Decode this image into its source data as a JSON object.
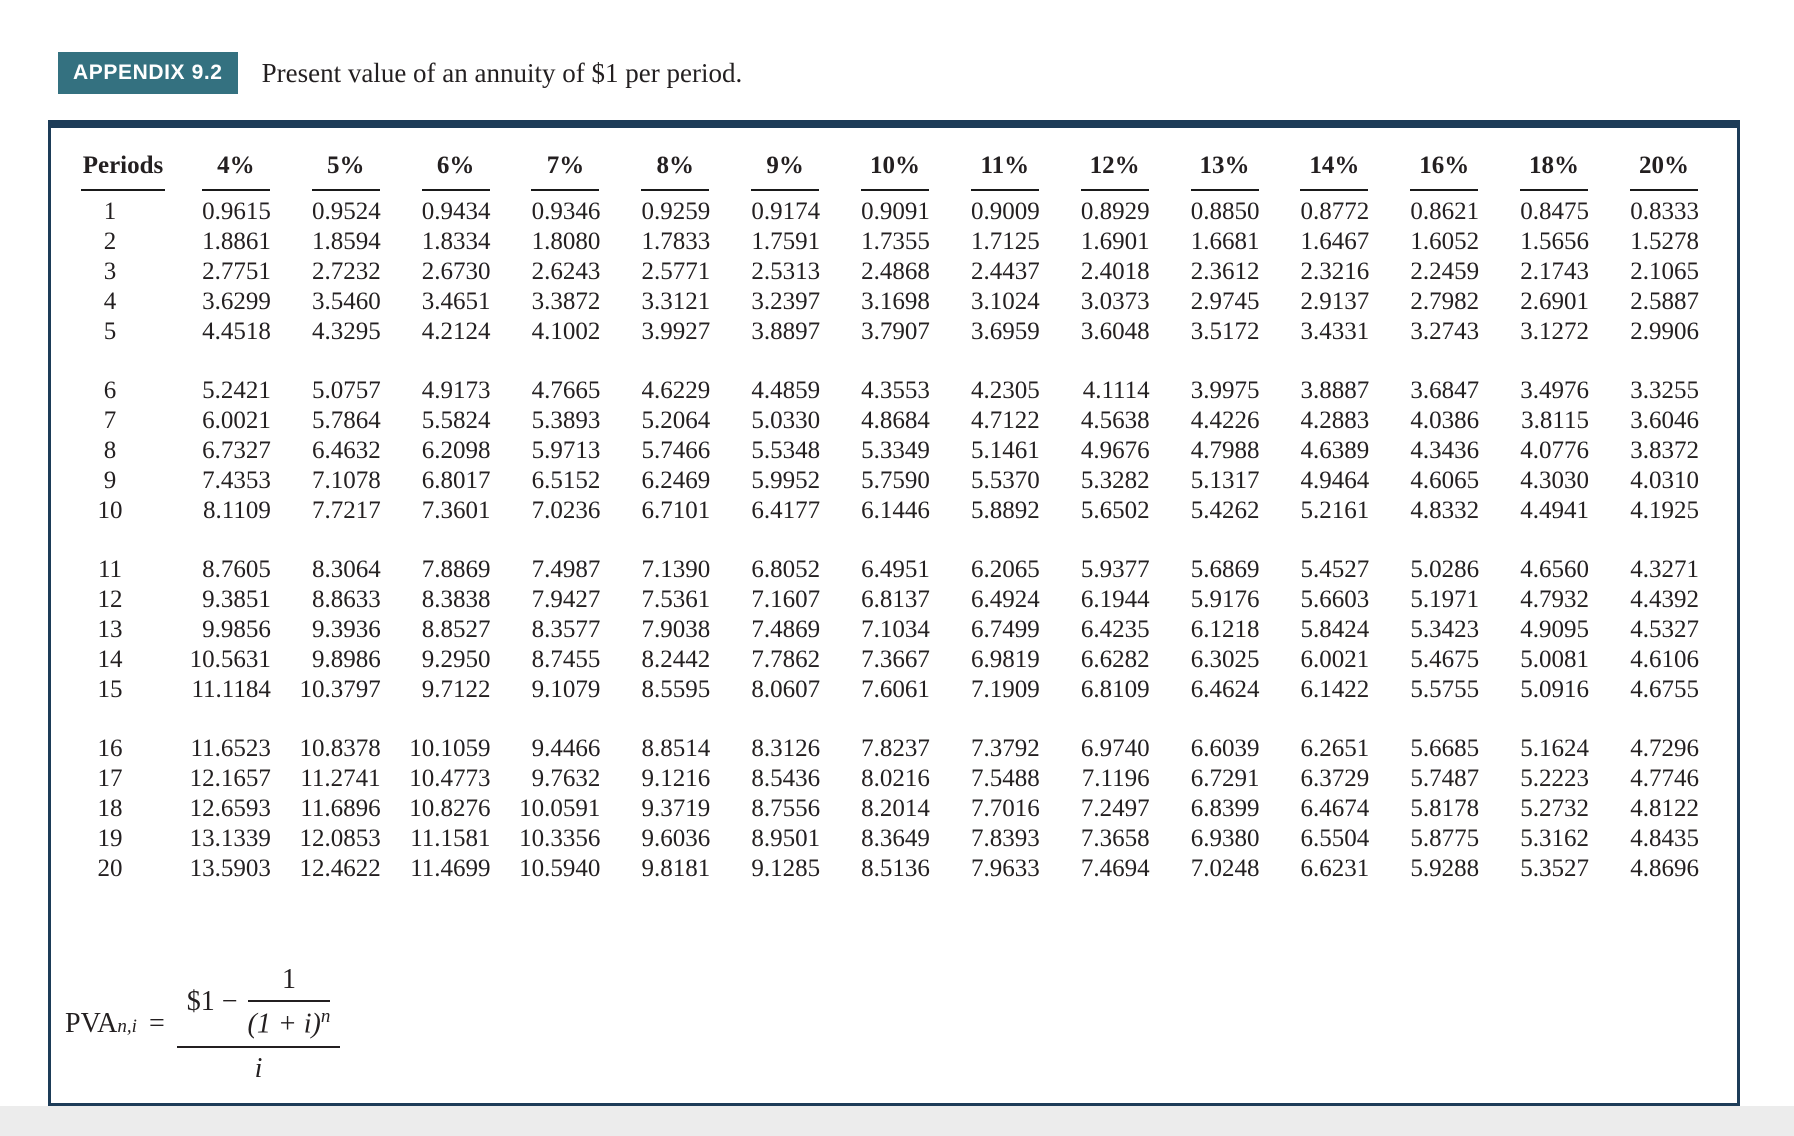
{
  "page": {
    "badge": "APPENDIX 9.2",
    "title": "Present value of an annuity of $1 per period."
  },
  "colors": {
    "badge_bg": "#347180",
    "badge_text": "#ffffff",
    "table_border": "#1d3c58",
    "text": "#231f20",
    "footer_band": "#ececec"
  },
  "table": {
    "columns": [
      "Periods",
      "4%",
      "5%",
      "6%",
      "7%",
      "8%",
      "9%",
      "10%",
      "11%",
      "12%",
      "13%",
      "14%",
      "16%",
      "18%",
      "20%"
    ],
    "group_size": 5,
    "rows": [
      {
        "period": "1",
        "values": [
          "0.9615",
          "0.9524",
          "0.9434",
          "0.9346",
          "0.9259",
          "0.9174",
          "0.9091",
          "0.9009",
          "0.8929",
          "0.8850",
          "0.8772",
          "0.8621",
          "0.8475",
          "0.8333"
        ]
      },
      {
        "period": "2",
        "values": [
          "1.8861",
          "1.8594",
          "1.8334",
          "1.8080",
          "1.7833",
          "1.7591",
          "1.7355",
          "1.7125",
          "1.6901",
          "1.6681",
          "1.6467",
          "1.6052",
          "1.5656",
          "1.5278"
        ]
      },
      {
        "period": "3",
        "values": [
          "2.7751",
          "2.7232",
          "2.6730",
          "2.6243",
          "2.5771",
          "2.5313",
          "2.4868",
          "2.4437",
          "2.4018",
          "2.3612",
          "2.3216",
          "2.2459",
          "2.1743",
          "2.1065"
        ]
      },
      {
        "period": "4",
        "values": [
          "3.6299",
          "3.5460",
          "3.4651",
          "3.3872",
          "3.3121",
          "3.2397",
          "3.1698",
          "3.1024",
          "3.0373",
          "2.9745",
          "2.9137",
          "2.7982",
          "2.6901",
          "2.5887"
        ]
      },
      {
        "period": "5",
        "values": [
          "4.4518",
          "4.3295",
          "4.2124",
          "4.1002",
          "3.9927",
          "3.8897",
          "3.7907",
          "3.6959",
          "3.6048",
          "3.5172",
          "3.4331",
          "3.2743",
          "3.1272",
          "2.9906"
        ]
      },
      {
        "period": "6",
        "values": [
          "5.2421",
          "5.0757",
          "4.9173",
          "4.7665",
          "4.6229",
          "4.4859",
          "4.3553",
          "4.2305",
          "4.1114",
          "3.9975",
          "3.8887",
          "3.6847",
          "3.4976",
          "3.3255"
        ]
      },
      {
        "period": "7",
        "values": [
          "6.0021",
          "5.7864",
          "5.5824",
          "5.3893",
          "5.2064",
          "5.0330",
          "4.8684",
          "4.7122",
          "4.5638",
          "4.4226",
          "4.2883",
          "4.0386",
          "3.8115",
          "3.6046"
        ]
      },
      {
        "period": "8",
        "values": [
          "6.7327",
          "6.4632",
          "6.2098",
          "5.9713",
          "5.7466",
          "5.5348",
          "5.3349",
          "5.1461",
          "4.9676",
          "4.7988",
          "4.6389",
          "4.3436",
          "4.0776",
          "3.8372"
        ]
      },
      {
        "period": "9",
        "values": [
          "7.4353",
          "7.1078",
          "6.8017",
          "6.5152",
          "6.2469",
          "5.9952",
          "5.7590",
          "5.5370",
          "5.3282",
          "5.1317",
          "4.9464",
          "4.6065",
          "4.3030",
          "4.0310"
        ]
      },
      {
        "period": "10",
        "values": [
          "8.1109",
          "7.7217",
          "7.3601",
          "7.0236",
          "6.7101",
          "6.4177",
          "6.1446",
          "5.8892",
          "5.6502",
          "5.4262",
          "5.2161",
          "4.8332",
          "4.4941",
          "4.1925"
        ]
      },
      {
        "period": "11",
        "values": [
          "8.7605",
          "8.3064",
          "7.8869",
          "7.4987",
          "7.1390",
          "6.8052",
          "6.4951",
          "6.2065",
          "5.9377",
          "5.6869",
          "5.4527",
          "5.0286",
          "4.6560",
          "4.3271"
        ]
      },
      {
        "period": "12",
        "values": [
          "9.3851",
          "8.8633",
          "8.3838",
          "7.9427",
          "7.5361",
          "7.1607",
          "6.8137",
          "6.4924",
          "6.1944",
          "5.9176",
          "5.6603",
          "5.1971",
          "4.7932",
          "4.4392"
        ]
      },
      {
        "period": "13",
        "values": [
          "9.9856",
          "9.3936",
          "8.8527",
          "8.3577",
          "7.9038",
          "7.4869",
          "7.1034",
          "6.7499",
          "6.4235",
          "6.1218",
          "5.8424",
          "5.3423",
          "4.9095",
          "4.5327"
        ]
      },
      {
        "period": "14",
        "values": [
          "10.5631",
          "9.8986",
          "9.2950",
          "8.7455",
          "8.2442",
          "7.7862",
          "7.3667",
          "6.9819",
          "6.6282",
          "6.3025",
          "6.0021",
          "5.4675",
          "5.0081",
          "4.6106"
        ]
      },
      {
        "period": "15",
        "values": [
          "11.1184",
          "10.3797",
          "9.7122",
          "9.1079",
          "8.5595",
          "8.0607",
          "7.6061",
          "7.1909",
          "6.8109",
          "6.4624",
          "6.1422",
          "5.5755",
          "5.0916",
          "4.6755"
        ]
      },
      {
        "period": "16",
        "values": [
          "11.6523",
          "10.8378",
          "10.1059",
          "9.4466",
          "8.8514",
          "8.3126",
          "7.8237",
          "7.3792",
          "6.9740",
          "6.6039",
          "6.2651",
          "5.6685",
          "5.1624",
          "4.7296"
        ]
      },
      {
        "period": "17",
        "values": [
          "12.1657",
          "11.2741",
          "10.4773",
          "9.7632",
          "9.1216",
          "8.5436",
          "8.0216",
          "7.5488",
          "7.1196",
          "6.7291",
          "6.3729",
          "5.7487",
          "5.2223",
          "4.7746"
        ]
      },
      {
        "period": "18",
        "values": [
          "12.6593",
          "11.6896",
          "10.8276",
          "10.0591",
          "9.3719",
          "8.7556",
          "8.2014",
          "7.7016",
          "7.2497",
          "6.8399",
          "6.4674",
          "5.8178",
          "5.2732",
          "4.8122"
        ]
      },
      {
        "period": "19",
        "values": [
          "13.1339",
          "12.0853",
          "11.1581",
          "10.3356",
          "9.6036",
          "8.9501",
          "8.3649",
          "7.8393",
          "7.3658",
          "6.9380",
          "6.5504",
          "5.8775",
          "5.3162",
          "4.8435"
        ]
      },
      {
        "period": "20",
        "values": [
          "13.5903",
          "12.4622",
          "11.4699",
          "10.5940",
          "9.8181",
          "9.1285",
          "8.5136",
          "7.9633",
          "7.4694",
          "7.0248",
          "6.6231",
          "5.9288",
          "5.3527",
          "4.8696"
        ]
      }
    ]
  },
  "formula": {
    "lhs": "PVA",
    "lhs_sub": "n,i",
    "equals": "=",
    "numerator_left": "$1 −",
    "inner_numerator": "1",
    "inner_denominator": "(1 + i)",
    "inner_exponent": "n",
    "denominator": "i"
  }
}
